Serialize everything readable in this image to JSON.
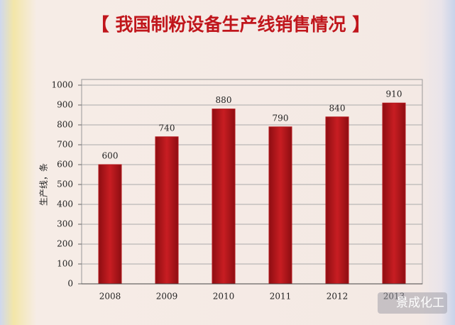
{
  "chart_data": {
    "type": "bar",
    "title": "【 我国制粉设备生产线销售情况 】",
    "y_label": "生产线，条",
    "categories": [
      "2008",
      "2009",
      "2010",
      "2011",
      "2012",
      "2013"
    ],
    "values": [
      600,
      740,
      880,
      790,
      840,
      910
    ],
    "color": "#b3161b",
    "ylim": [
      0,
      1000
    ],
    "yticks": [
      0,
      100,
      200,
      300,
      400,
      500,
      600,
      700,
      800,
      900,
      1000
    ],
    "grid": true,
    "watermark": "景成化工"
  }
}
